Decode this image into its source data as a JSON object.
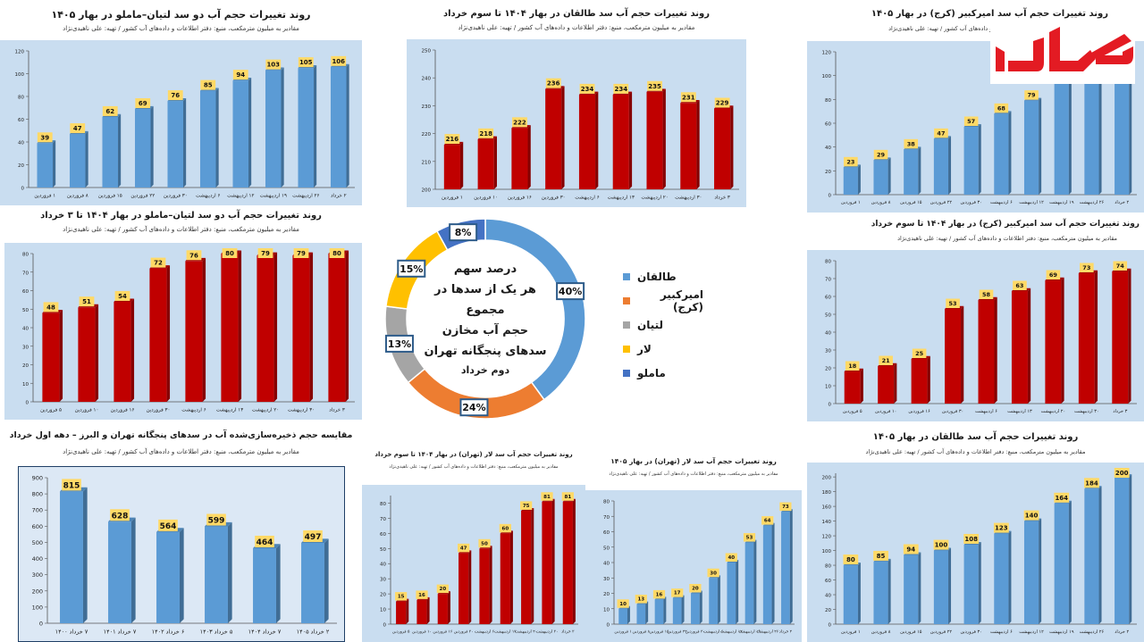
{
  "colors": {
    "blue_bar": "#5b9bd5",
    "red_bar": "#c00000",
    "label_bg": "#ffd966",
    "plot_bg": "#c9ddf0",
    "donut": [
      "#5b9bd5",
      "#ed7d31",
      "#a5a5a5",
      "#ffc000",
      "#4472c4"
    ]
  },
  "charts": {
    "mamlou_1405": {
      "title": "روند تغییرات حجم آب دو سد لتیان–ماملو در بهار ۱۴۰۵",
      "subtitle": "مقادیر به میلیون مترمکعب، منبع: دفتر اطلاعات و داده‌های آب کشور / تهیه: علی ناهیدی‌نژاد"
    },
    "taleghan_1404": {
      "title": "روند تغییرات حجم آب سد طالقان در بهار ۱۴۰۴ تا سوم خرداد",
      "subtitle": "مقادیر به میلیون مترمکعب، منبع: دفتر اطلاعات و داده‌های آب کشور / تهیه: علی ناهیدی‌نژاد"
    },
    "karaj_1405": {
      "title": "روند تغییرات حجم آب سد امیرکبیر (کرج) در بهار ۱۴۰۵",
      "subtitle": "مقادیر به میلیون مترمکعب، منبع: دفتر اطلاعات و داده‌های آب کشور / تهیه: علی ناهیدی‌نژاد"
    },
    "mamlou_1404": {
      "title": "روند تغییرات حجم آب دو سد لتیان–ماملو در بهار ۱۴۰۴ تا ۳ خرداد",
      "subtitle": "مقادیر به میلیون مترمکعب، منبع: دفتر اطلاعات و داده‌های آب کشور / تهیه: علی ناهیدی‌نژاد"
    },
    "karaj_1404": {
      "title": "روند تغییرات حجم آب سد امیرکبیر (کرج) در بهار ۱۴۰۴ تا سوم خرداد",
      "subtitle": "مقادیر به میلیون مترمکعب، منبع: دفتر اطلاعات و داده‌های آب کشور / تهیه: علی ناهیدی‌نژاد"
    },
    "comparison": {
      "title": "مقایسه حجم ذخیره‌سازی‌شده آب در سدهای پنجگانه تهران و البرز – دهه اول خرداد",
      "subtitle": "مقادیر به میلیون مترمکعب، منبع: دفتر اطلاعات و داده‌های آب کشور / تهیه: علی ناهیدی‌نژاد"
    },
    "lar_1404": {
      "title": "روند تغییرات حجم آب سد لار (تهران) در بهار ۱۴۰۴ تا سوم خرداد",
      "subtitle": "مقادیر به میلیون مترمکعب، منبع: دفتر اطلاعات و داده‌های آب کشور / تهیه: علی ناهیدی‌نژاد"
    },
    "lar_1405": {
      "title": "روند تغییرات حجم آب سد لار (تهران) در بهار ۱۴۰۵",
      "subtitle": "مقادیر به میلیون مترمکعب، منبع: دفتر اطلاعات و داده‌های آب کشور / تهیه: علی ناهیدی‌نژاد"
    },
    "taleghan_1405": {
      "title": "روند تغییرات حجم آب سد طالقان در بهار ۱۴۰۵",
      "subtitle": "مقادیر به میلیون مترمکعب، منبع: دفتر اطلاعات و داده‌های آب کشور / تهیه: علی ناهیدی‌نژاد"
    }
  },
  "donut": {
    "center_lines": [
      "درصد سهم",
      "هر یک از سدها در مجموع",
      "حجم آب مخازن",
      "سدهای پنجگانه تهران",
      "دوم خرداد"
    ]
  },
  "chart_data": [
    {
      "id": "mamlou_1405",
      "type": "bar",
      "categories": [
        "۱ فروردین",
        "۸ فروردین",
        "۱۵ فروردین",
        "۲۲ فروردین",
        "۳۰ فروردین",
        "۶ اردیبهشت",
        "۱۲ اردیبهشت",
        "۱۹ اردیبهشت",
        "۲۶ اردیبهشت",
        "۲ خرداد"
      ],
      "values": [
        39,
        47,
        62,
        69,
        76,
        85,
        94,
        103,
        105,
        106
      ],
      "yticks": [
        0,
        20,
        40,
        60,
        80,
        100,
        120
      ],
      "ylim": [
        0,
        120
      ]
    },
    {
      "id": "taleghan_1404",
      "type": "bar",
      "categories": [
        "۱ فروردین",
        "۱۰ فروردین",
        "۱۶ فروردین",
        "۳۰ فروردین",
        "۶ اردیبهشت",
        "۱۳ اردیبهشت",
        "۲۰ اردیبهشت",
        "۳۰ اردیبهشت",
        "۳ خرداد"
      ],
      "values": [
        216,
        218,
        222,
        236,
        234,
        234,
        235,
        231,
        229
      ],
      "yticks": [
        200,
        210,
        220,
        230,
        240,
        250
      ],
      "ylim": [
        200,
        250
      ]
    },
    {
      "id": "karaj_1405",
      "type": "bar",
      "categories": [
        "۱ فروردین",
        "۸ فروردین",
        "۱۵ فروردین",
        "۲۲ فروردین",
        "۳۰ فروردین",
        "۶ اردیبهشت",
        "۱۲ اردیبهشت",
        "۱۹ اردیبهشت",
        "۲۶ اردیبهشت",
        "۲ خرداد"
      ],
      "values": [
        23,
        29,
        38,
        47,
        57,
        68,
        79,
        93,
        106,
        117
      ],
      "yticks": [
        0,
        20,
        40,
        60,
        80,
        100,
        120
      ],
      "ylim": [
        0,
        120
      ]
    },
    {
      "id": "mamlou_1404",
      "type": "bar",
      "categories": [
        "۵ فروردین",
        "۱۰ فروردین",
        "۱۶ فروردین",
        "۳۰ فروردین",
        "۶ اردیبهشت",
        "۱۳ اردیبهشت",
        "۲۰ اردیبهشت",
        "۳۰ اردیبهشت",
        "۳ خرداد"
      ],
      "values": [
        48,
        51,
        54,
        72,
        76,
        80,
        79,
        79,
        80
      ],
      "yticks": [
        0,
        10,
        20,
        30,
        40,
        50,
        60,
        70,
        80
      ],
      "ylim": [
        0,
        80
      ]
    },
    {
      "id": "karaj_1404",
      "type": "bar",
      "categories": [
        "۵ فروردین",
        "۱۰ فروردین",
        "۱۶ فروردین",
        "۳۰ فروردین",
        "۶ اردیبهشت",
        "۱۳ اردیبهشت",
        "۲۰ اردیبهشت",
        "۳۰ اردیبهشت",
        "۳ خرداد"
      ],
      "values": [
        18,
        21,
        25,
        53,
        58,
        63,
        69,
        73,
        74
      ],
      "yticks": [
        0,
        10,
        20,
        30,
        40,
        50,
        60,
        70,
        80
      ],
      "ylim": [
        0,
        80
      ]
    },
    {
      "id": "comparison",
      "type": "bar",
      "categories": [
        "۷ خرداد ۱۴۰۰",
        "۷ خرداد ۱۴۰۱",
        "۶ خرداد ۱۴۰۲",
        "۵ خرداد ۱۴۰۳",
        "۷ خرداد ۱۴۰۴",
        "۲ خرداد ۱۴۰۵"
      ],
      "values": [
        815,
        628,
        564,
        599,
        464,
        497
      ],
      "yticks": [
        0,
        100,
        200,
        300,
        400,
        500,
        600,
        700,
        800,
        900
      ],
      "ylim": [
        0,
        900
      ]
    },
    {
      "id": "lar_1404",
      "type": "bar",
      "categories": [
        "۵ فروردین",
        "۱۰ فروردین",
        "۱۶ فروردین",
        "۳۰ فروردین",
        "۶ اردیبهشت",
        "۱۳ اردیبهشت",
        "۲۰ اردیبهشت",
        "۳۰ اردیبهشت",
        "۳ خرداد"
      ],
      "values": [
        15,
        16,
        20,
        47,
        50,
        60,
        75,
        81,
        81
      ],
      "yticks": [
        0,
        10,
        20,
        30,
        40,
        50,
        60,
        70,
        80
      ],
      "ylim": [
        0,
        85
      ]
    },
    {
      "id": "lar_1405",
      "type": "bar",
      "categories": [
        "۱ فروردین",
        "۸ فروردین",
        "۱۵ فروردین",
        "۲۲ فروردین",
        "۳۰ فروردین",
        "۶ اردیبهشت",
        "۱۲ اردیبهشت",
        "۱۹ اردیبهشت",
        "۲۶ اردیبهشت",
        "۲ خرداد"
      ],
      "values": [
        10,
        13,
        16,
        17,
        20,
        30,
        40,
        53,
        64,
        73
      ],
      "yticks": [
        0,
        10,
        20,
        30,
        40,
        50,
        60,
        70,
        80
      ],
      "ylim": [
        0,
        80
      ]
    },
    {
      "id": "taleghan_1405",
      "type": "bar",
      "categories": [
        "۱ فروردین",
        "۸ فروردین",
        "۱۵ فروردین",
        "۲۲ فروردین",
        "۳۰ فروردین",
        "۶ اردیبهشت",
        "۱۲ اردیبهشت",
        "۱۹ اردیبهشت",
        "۲۶ اردیبهشت",
        "۲ خرداد"
      ],
      "values": [
        80,
        85,
        94,
        100,
        108,
        123,
        140,
        164,
        184,
        200
      ],
      "yticks": [
        0,
        20,
        40,
        60,
        80,
        100,
        120,
        140,
        160,
        180,
        200
      ],
      "ylim": [
        0,
        205
      ]
    },
    {
      "id": "share_donut",
      "type": "pie",
      "categories": [
        "طالقان",
        "امیرکبیر (کرج)",
        "لتیان",
        "لار",
        "ماملو"
      ],
      "values": [
        40,
        24,
        13,
        15,
        8
      ],
      "labels": [
        "40%",
        "24%",
        "13%",
        "15%",
        "8%"
      ]
    }
  ]
}
